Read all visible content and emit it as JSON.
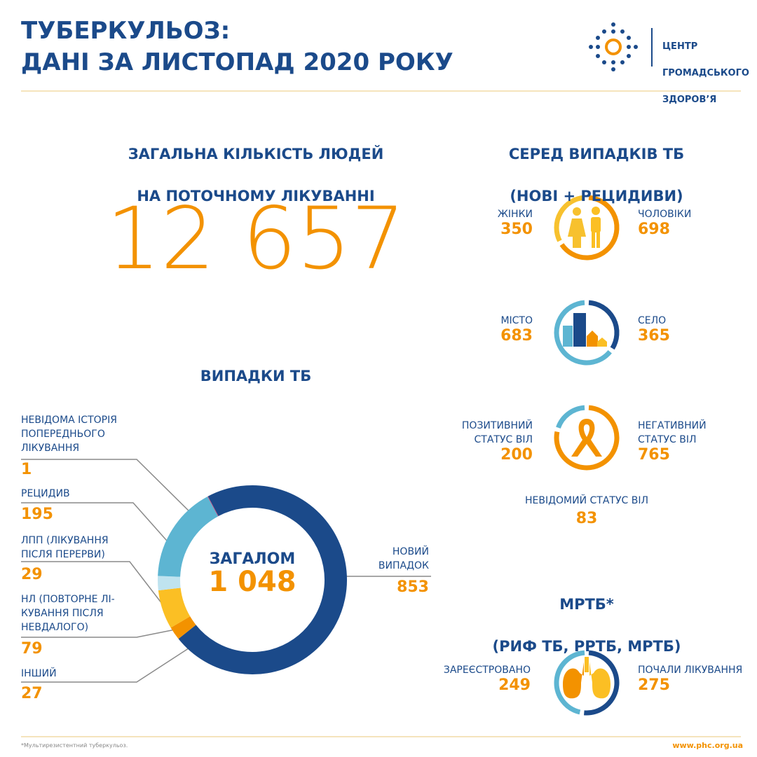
{
  "header": {
    "title_lines": [
      "ТУБЕРКУЛЬОЗ:",
      "ДАНІ ЗА ЛИСТОПАД 2020 РОКУ"
    ],
    "logo_lines": [
      "ЦЕНТР",
      "ГРОМАДСЬКОГО",
      "ЗДОРОВ’Я"
    ]
  },
  "treatment": {
    "title_lines": [
      "ЗАГАЛЬНА КІЛЬКІСТЬ ЛЮДЕЙ",
      "НА ПОТОЧНОМУ ЛІКУВАННІ"
    ],
    "value": "12 657"
  },
  "breakdown": {
    "title_lines": [
      "СЕРЕД ВИПАДКІВ ТБ",
      "(НОВІ + РЕЦИДИВИ)"
    ],
    "groups": [
      {
        "left_label": "ЖІНКИ",
        "left_value": 350,
        "left_color": "#f7c12e",
        "right_label": "ЧОЛОВІКИ",
        "right_value": 698,
        "right_color": "#f39200"
      },
      {
        "left_label": "МІСТО",
        "left_value": 683,
        "left_color": "#5db5d2",
        "right_label": "СЕЛО",
        "right_value": 365,
        "right_color": "#1b4a8a"
      },
      {
        "left_label": "ПОЗИТИВНИЙ\nСТАТУС ВІЛ",
        "left_value": 200,
        "left_color": "#5db5d2",
        "right_label": "НЕГАТИВНИЙ\nСТАТУС  ВІЛ",
        "right_value": 765,
        "right_color": "#f39200"
      }
    ],
    "unknown_label": "НЕВІДОМИЙ СТАТУС ВІЛ",
    "unknown_value": 83
  },
  "mdr": {
    "title_lines": [
      "МРТБ*",
      "(РИФ ТБ, РРТБ, МРТБ)"
    ],
    "group": {
      "left_label": "ЗАРЕЄСТРОВАНО",
      "left_value": 249,
      "left_color": "#5db5d2",
      "right_label": "ПОЧАЛИ ЛІКУВАННЯ",
      "right_value": 275,
      "right_color": "#1b4a8a"
    }
  },
  "chart_data": {
    "type": "donut",
    "title": "ВИПАДКИ ТБ",
    "center_label": "ЗАГАЛОМ",
    "center_value": "1 048",
    "categories": [
      "НОВИЙ\nВИПАДОК",
      "ІНШИЙ",
      "НЛ (ПОВТОРНЕ ЛІ-\nКУВАННЯ ПІСЛЯ\nНЕВДАЛОГО)",
      "ЛПП (ЛІКУВАННЯ\nПІСЛЯ ПЕРЕРВИ)",
      "РЕЦИДИВ",
      "НЕВІДОМА ІСТОРІЯ\nПОПЕРЕДНЬОГО\nЛІКУВАННЯ"
    ],
    "values": [
      853,
      27,
      79,
      29,
      195,
      1
    ],
    "colors": [
      "#1b4a8a",
      "#f39200",
      "#fbbf24",
      "#bfe3ef",
      "#5db5d2",
      "#d6336c"
    ]
  },
  "footer": {
    "note": "*Мультирезистентний туберкульоз.",
    "url": "www.phc.org.ua"
  }
}
